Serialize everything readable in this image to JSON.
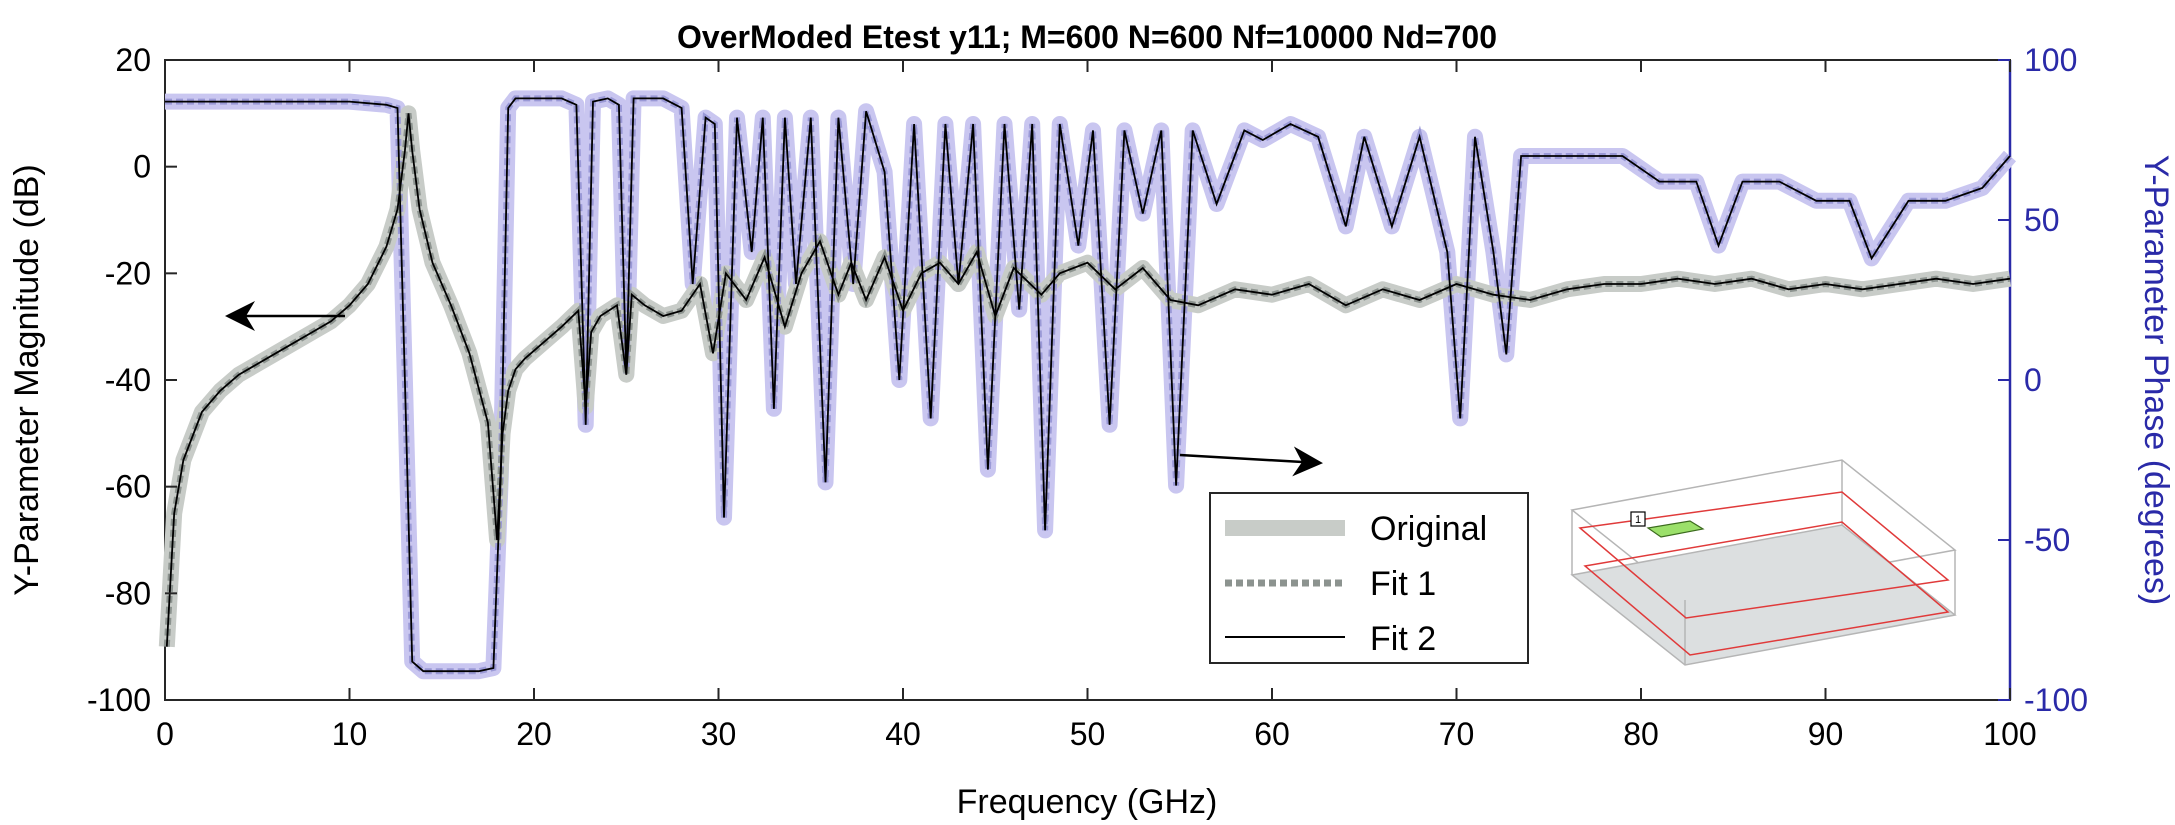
{
  "chart_data": {
    "type": "line",
    "title": "OverModed Etest y11; M=600 N=600 Nf=10000 Nd=700",
    "xlabel": "Frequency (GHz)",
    "ylabel_left": "Y-Parameter Magnitude (dB)",
    "ylabel_right": "Y-Parameter Phase (degrees)",
    "xlim": [
      0,
      100
    ],
    "ylim_left": [
      -100,
      20
    ],
    "ylim_right": [
      -100,
      100
    ],
    "x_ticks": [
      "0",
      "10",
      "20",
      "30",
      "40",
      "50",
      "60",
      "70",
      "80",
      "90",
      "100"
    ],
    "y_left_ticks": [
      "-100",
      "-80",
      "-60",
      "-40",
      "-20",
      "0",
      "20"
    ],
    "y_right_ticks": [
      "-100",
      "-50",
      "0",
      "50",
      "100"
    ],
    "grid": false,
    "legend": {
      "position": "bottom-center",
      "entries": [
        "Original",
        "Fit 1",
        "Fit 2"
      ]
    },
    "series_styles": {
      "Original": "thick light gray band",
      "Fit 1": "dotted gray line",
      "Fit 2": "thin black line"
    },
    "magnitude_trace_db": {
      "x": [
        0.1,
        0.5,
        1,
        2,
        3,
        4,
        5,
        6,
        7,
        8,
        9,
        10,
        11,
        12,
        12.6,
        13.0,
        13.2,
        13.4,
        13.8,
        14.5,
        15.5,
        16.5,
        17.5,
        18.0,
        18.3,
        18.6,
        19.0,
        19.5,
        20.5,
        21.5,
        22.4,
        22.8,
        23.1,
        23.6,
        24.5,
        25.0,
        25.3,
        26,
        27,
        28,
        29.0,
        29.7,
        30.4,
        31.5,
        32.5,
        33.6,
        34.5,
        35.5,
        36.5,
        37.2,
        38.0,
        39.0,
        40.0,
        41.0,
        42.0,
        43.0,
        44.0,
        45.0,
        46.0,
        47.5,
        48.5,
        50.0,
        51.5,
        53.0,
        54.5,
        56,
        58,
        60,
        62,
        64,
        66,
        68,
        70,
        72,
        74,
        76,
        78,
        80,
        82,
        84,
        86,
        88,
        90,
        92,
        94,
        96,
        98,
        100
      ],
      "y": [
        -90,
        -65,
        -55,
        -46,
        -42,
        -39,
        -37,
        -35,
        -33,
        -31,
        -29,
        -26,
        -22,
        -15,
        -8,
        3,
        10,
        3,
        -8,
        -18,
        -26,
        -35,
        -48,
        -70,
        -50,
        -42,
        -38,
        -36,
        -33,
        -30,
        -27,
        -45,
        -31,
        -28,
        -26,
        -39,
        -24,
        -26,
        -28,
        -27,
        -22,
        -35,
        -20,
        -25,
        -17,
        -30,
        -20,
        -14,
        -24,
        -18,
        -25,
        -17,
        -27,
        -20,
        -18,
        -22,
        -16,
        -28,
        -19,
        -24,
        -20,
        -18,
        -23,
        -19,
        -25,
        -26,
        -23,
        -24,
        -22,
        -26,
        -23,
        -25,
        -22,
        -24,
        -25,
        -23,
        -22,
        -22,
        -21,
        -22,
        -21,
        -23,
        -22,
        -23,
        -22,
        -21,
        -22,
        -21
      ]
    },
    "phase_trace_deg": {
      "x": [
        0,
        5,
        10,
        12.0,
        12.6,
        13.0,
        13.4,
        14.0,
        15.0,
        16.0,
        17.0,
        17.8,
        18.2,
        18.6,
        19.0,
        20.0,
        21.5,
        22.3,
        22.8,
        23.2,
        24.0,
        24.6,
        25.0,
        25.4,
        26.0,
        27.0,
        28.0,
        28.6,
        29.3,
        29.8,
        30.3,
        31.0,
        31.8,
        32.4,
        33.0,
        33.6,
        34.2,
        35.0,
        35.8,
        36.5,
        37.3,
        38.0,
        39.0,
        39.8,
        40.6,
        41.5,
        42.3,
        43.0,
        43.8,
        44.6,
        45.5,
        46.3,
        47.0,
        47.7,
        48.5,
        49.5,
        50.3,
        51.2,
        52.0,
        53.0,
        54.0,
        54.8,
        55.7,
        57.0,
        58.5,
        59.5,
        61.0,
        62.5,
        64.0,
        65.0,
        66.5,
        68.0,
        69.5,
        70.2,
        71.0,
        72.0,
        72.7,
        73.5,
        75.0,
        77.0,
        79.0,
        81.0,
        83.0,
        84.2,
        85.5,
        87.5,
        89.5,
        91.3,
        92.5,
        94.5,
        96.5,
        98.5,
        100
      ],
      "y": [
        87,
        87,
        87,
        86,
        85,
        0,
        -88,
        -91,
        -91,
        -91,
        -91,
        -90,
        -30,
        85,
        88,
        88,
        88,
        86,
        -14,
        87,
        88,
        86,
        2,
        88,
        88,
        88,
        85,
        30,
        82,
        80,
        -43,
        82,
        40,
        82,
        -9,
        82,
        30,
        82,
        -32,
        82,
        30,
        84,
        65,
        0,
        80,
        -12,
        80,
        30,
        80,
        -28,
        80,
        22,
        80,
        -47,
        80,
        42,
        78,
        -14,
        78,
        52,
        78,
        -33,
        78,
        55,
        78,
        75,
        80,
        76,
        48,
        76,
        48,
        76,
        40,
        -12,
        76,
        40,
        8,
        70,
        70,
        70,
        70,
        62,
        62,
        42,
        62,
        62,
        56,
        56,
        38,
        56,
        56,
        60,
        70
      ]
    },
    "annotations": [
      {
        "type": "arrow",
        "points_to": "left axis",
        "near_x": 10,
        "near_y_db": -28
      },
      {
        "type": "arrow",
        "points_to": "right axis",
        "near_x": 55,
        "near_y_db": -54
      }
    ],
    "inset": {
      "description_label": "1"
    }
  }
}
